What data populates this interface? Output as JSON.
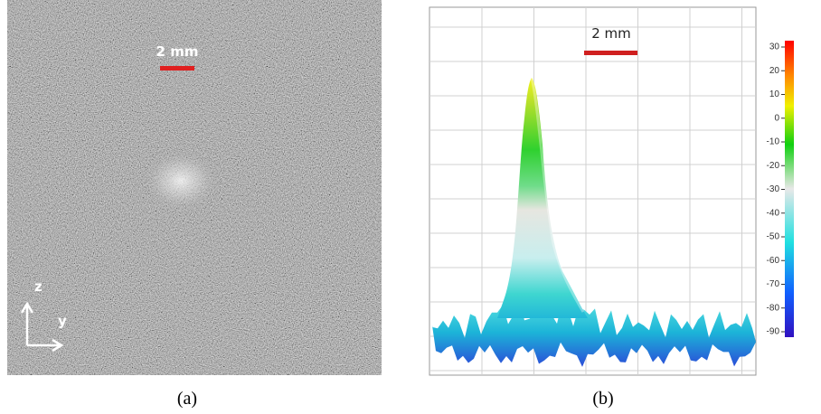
{
  "panel_a": {
    "scale_bar": "2 mm",
    "axis_z": "z",
    "axis_y": "y",
    "caption": "(a)"
  },
  "panel_b": {
    "scale_bar": "2 mm",
    "caption": "(b)",
    "colorbar": {
      "ticks": [
        30,
        20,
        10,
        0,
        -10,
        -20,
        -30,
        -40,
        -50,
        -60,
        -70,
        -80,
        -90
      ]
    }
  }
}
